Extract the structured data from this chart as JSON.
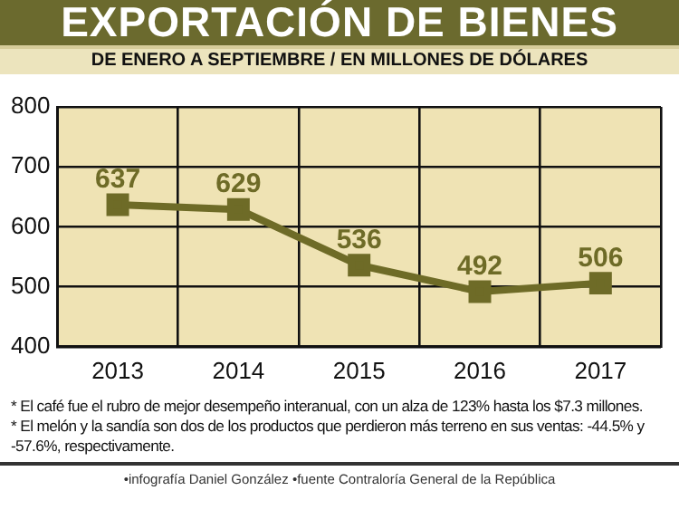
{
  "chart_data": {
    "type": "line",
    "title": "EXPORTACIÓN DE BIENES",
    "subtitle": "DE ENERO A SEPTIEMBRE / EN MILLONES DE DÓLARES",
    "categories": [
      "2013",
      "2014",
      "2015",
      "2016",
      "2017"
    ],
    "series": [
      {
        "color": "#6e6b27",
        "values": [
          637,
          629,
          536,
          492,
          506
        ]
      }
    ],
    "ylim": [
      400,
      800
    ],
    "yticks": [
      400,
      500,
      600,
      700,
      800
    ],
    "grid": true,
    "marker": "square",
    "line_style": "solid",
    "data_labels": true,
    "legend": false,
    "annotations": [
      "* El café fue el rubro de mejor desempeño interanual, con un alza de 123% hasta los $7.3 millones.",
      "* El melón y la sandía son dos de los productos que perdieron más terreno en sus ventas: -44.5% y -57.6%, respectivamente.",
      "•infografía Daniel González  •fuente Contraloría General de la República"
    ]
  }
}
